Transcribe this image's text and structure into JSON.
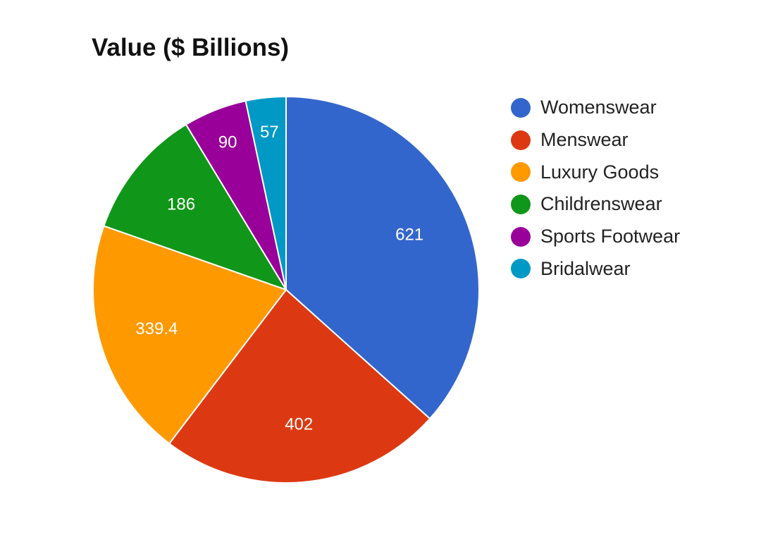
{
  "chart_data": {
    "type": "pie",
    "title": "Value ($ Billions)",
    "legend_position": "right",
    "slices": [
      {
        "label": "Womenswear",
        "value": 621,
        "value_label": "621",
        "color": "#3366cc"
      },
      {
        "label": "Menswear",
        "value": 402,
        "value_label": "402",
        "color": "#dc3912"
      },
      {
        "label": "Luxury Goods",
        "value": 339.4,
        "value_label": "339.4",
        "color": "#ff9900"
      },
      {
        "label": "Childrenswear",
        "value": 186,
        "value_label": "186",
        "color": "#109618"
      },
      {
        "label": "Sports Footwear",
        "value": 90,
        "value_label": "90",
        "color": "#990099"
      },
      {
        "label": "Bridalwear",
        "value": 57,
        "value_label": "57",
        "color": "#0099c6"
      }
    ]
  }
}
